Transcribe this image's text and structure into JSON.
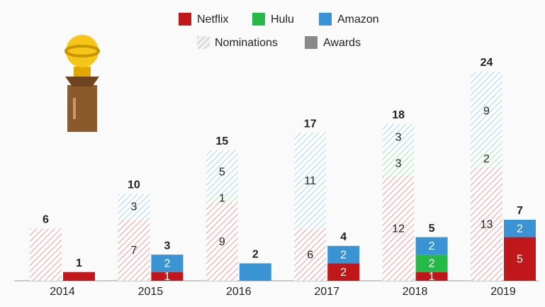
{
  "chart_data": {
    "type": "grouped_stacked_bar",
    "categories": [
      "2014",
      "2015",
      "2016",
      "2017",
      "2018",
      "2019"
    ],
    "series": [
      {
        "name": "Netflix",
        "color": "#c0171b",
        "nominations": [
          6,
          7,
          9,
          6,
          12,
          13
        ],
        "awards": [
          1,
          1,
          0,
          2,
          1,
          5
        ]
      },
      {
        "name": "Hulu",
        "color": "#27b84a",
        "nominations": [
          0,
          0,
          1,
          0,
          3,
          2
        ],
        "awards": [
          0,
          0,
          0,
          0,
          2,
          0
        ]
      },
      {
        "name": "Amazon",
        "color": "#3a94d4",
        "nominations": [
          0,
          3,
          5,
          11,
          3,
          9
        ],
        "awards": [
          0,
          2,
          2,
          2,
          2,
          2
        ]
      }
    ],
    "groups": [
      "Nominations",
      "Awards"
    ],
    "nomination_totals": [
      6,
      10,
      15,
      17,
      18,
      24
    ],
    "award_totals": [
      1,
      3,
      2,
      4,
      5,
      7
    ],
    "ylim": [
      0,
      24
    ]
  }
}
